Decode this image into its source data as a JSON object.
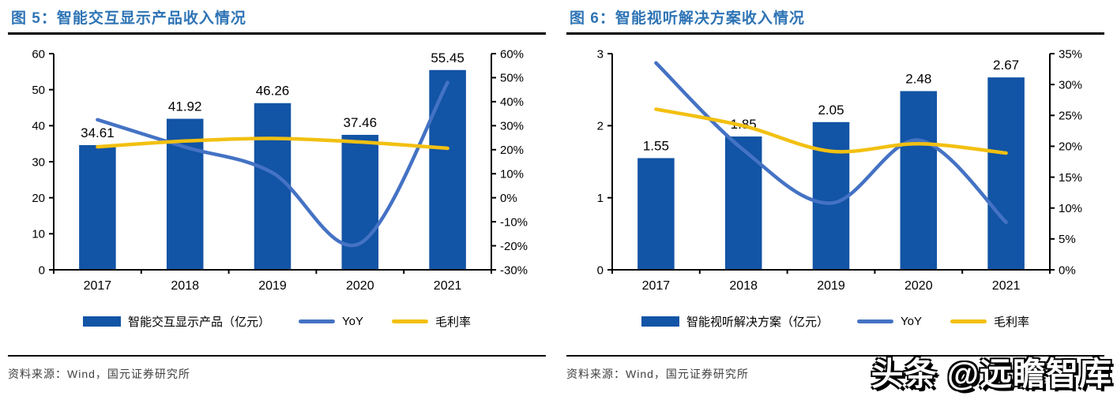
{
  "watermark": "头条 @远瞻智库",
  "panels": [
    {
      "source": "资料来源：Wind，国元证券研究所"
    },
    {
      "source": "资料来源：Wind，国元证券研究所"
    }
  ],
  "colors": {
    "title_blue": "#2E74B5",
    "bar_blue": "#1254A5",
    "yoy_blue": "#4472C4",
    "margin_yellow": "#F2C011",
    "axis_black": "#000000",
    "source_gray": "#404040"
  },
  "chart_data": [
    {
      "type": "bar",
      "title": "图 5：智能交互显示产品收入情况",
      "categories": [
        "2017",
        "2018",
        "2019",
        "2020",
        "2021"
      ],
      "series": [
        {
          "name": "智能交互显示产品（亿元）",
          "type": "bar",
          "axis": "left",
          "color": "#1254A5",
          "values": [
            34.61,
            41.92,
            46.26,
            37.46,
            55.45
          ],
          "labels": [
            "34.61",
            "41.92",
            "46.26",
            "37.46",
            "55.45"
          ]
        },
        {
          "name": "YoY",
          "type": "line",
          "axis": "right",
          "color": "#4472C4",
          "values": [
            32.5,
            21.1,
            10.4,
            -19.0,
            48.0
          ]
        },
        {
          "name": "毛利率",
          "type": "line",
          "axis": "right",
          "color": "#F2C011",
          "values": [
            21.2,
            23.6,
            24.7,
            23.2,
            20.6
          ]
        }
      ],
      "left_axis": {
        "min": 0,
        "max": 60,
        "step": 10,
        "ticks": [
          "0",
          "10",
          "20",
          "30",
          "40",
          "50",
          "60"
        ]
      },
      "right_axis": {
        "min": -30,
        "max": 60,
        "step": 10,
        "ticks": [
          "-30%",
          "-20%",
          "-10%",
          "0%",
          "10%",
          "20%",
          "30%",
          "40%",
          "50%",
          "60%"
        ]
      },
      "grid": false,
      "legend_position": "bottom"
    },
    {
      "type": "bar",
      "title": "图 6：智能视听解决方案收入情况",
      "categories": [
        "2017",
        "2018",
        "2019",
        "2020",
        "2021"
      ],
      "series": [
        {
          "name": "智能视听解决方案（亿元）",
          "type": "bar",
          "axis": "left",
          "color": "#1254A5",
          "values": [
            1.55,
            1.85,
            2.05,
            2.48,
            2.67
          ],
          "labels": [
            "1.55",
            "1.85",
            "2.05",
            "2.48",
            "2.67"
          ]
        },
        {
          "name": "YoY",
          "type": "line",
          "axis": "right",
          "color": "#4472C4",
          "values": [
            33.5,
            19.4,
            10.8,
            21.0,
            7.7
          ]
        },
        {
          "name": "毛利率",
          "type": "line",
          "axis": "right",
          "color": "#F2C011",
          "values": [
            26.0,
            23.3,
            19.2,
            20.4,
            18.9
          ]
        }
      ],
      "left_axis": {
        "min": 0,
        "max": 3,
        "step": 1,
        "ticks": [
          "0",
          "1",
          "2",
          "3"
        ]
      },
      "right_axis": {
        "min": 0,
        "max": 35,
        "step": 5,
        "ticks": [
          "0%",
          "5%",
          "10%",
          "15%",
          "20%",
          "25%",
          "30%",
          "35%"
        ]
      },
      "grid": false,
      "legend_position": "bottom"
    }
  ]
}
